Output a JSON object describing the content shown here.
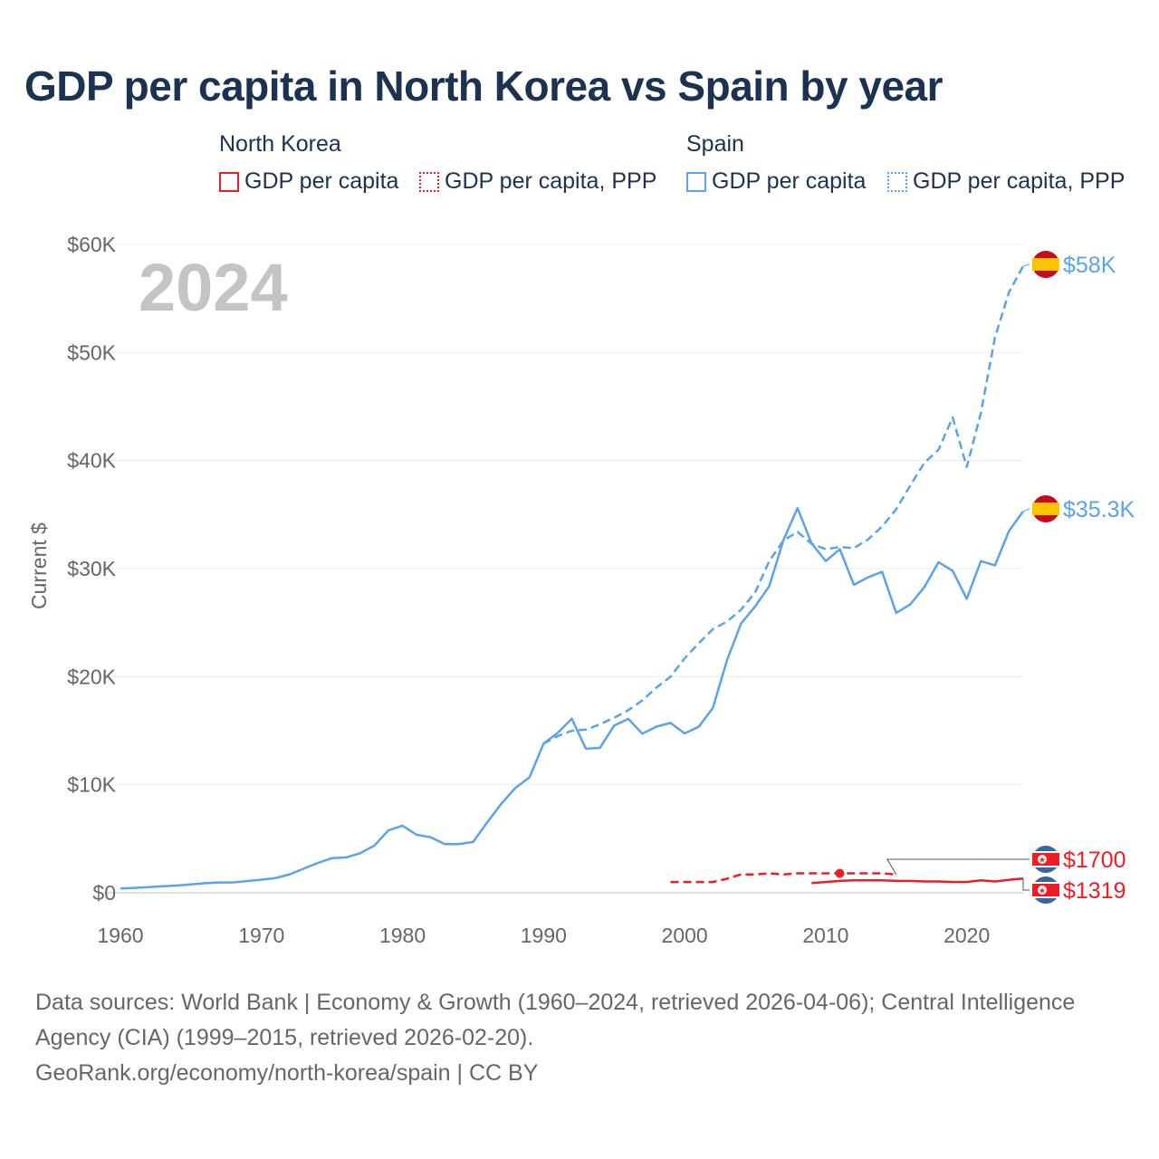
{
  "title": "GDP per capita in North Korea vs Spain by year",
  "legend": {
    "groups": [
      {
        "name": "North Korea",
        "items": [
          "GDP per capita",
          "GDP per capita, PPP"
        ]
      },
      {
        "name": "Spain",
        "items": [
          "GDP per capita",
          "GDP per capita, PPP"
        ]
      }
    ]
  },
  "year_label": "2024",
  "colors": {
    "north_korea": "#ee1c25",
    "spain": "#5ba3e8",
    "title": "#1b3350"
  },
  "chart_data": {
    "type": "line",
    "title": "GDP per capita in North Korea vs Spain by year",
    "xlabel": "",
    "ylabel": "Current $",
    "xlim": [
      1960,
      2024
    ],
    "ylim": [
      0,
      60000
    ],
    "x_ticks": [
      1960,
      1970,
      1980,
      1990,
      2000,
      2010,
      2020
    ],
    "x_tick_labels": [
      "1960",
      "1970",
      "1980",
      "1990",
      "2000",
      "2010",
      "2020"
    ],
    "y_ticks": [
      0,
      10000,
      20000,
      30000,
      40000,
      50000,
      60000
    ],
    "y_tick_labels": [
      "$0",
      "$10K",
      "$20K",
      "$30K",
      "$40K",
      "$50K",
      "$60K"
    ],
    "grid": true,
    "legend_position": "top",
    "series": [
      {
        "name": "Spain GDP per capita",
        "style": "solid",
        "color": "#5ba3e8",
        "end_label": "$35.3K",
        "start": 1960,
        "values": [
          396,
          449,
          520,
          609,
          675,
          774,
          889,
          950,
          958,
          1086,
          1212,
          1362,
          1708,
          2242,
          2759,
          3209,
          3275,
          3665,
          4364,
          5778,
          6208,
          5371,
          5137,
          4500,
          4509,
          4700,
          6513,
          8237,
          9701,
          10681,
          13805,
          14798,
          16113,
          13330,
          13421,
          15470,
          16098,
          14723,
          15378,
          15724,
          14750,
          15370,
          17105,
          21520,
          24925,
          26509,
          28377,
          32627,
          35601,
          32334,
          30700,
          31800,
          28500,
          29200,
          29700,
          25900,
          26700,
          28300,
          30600,
          29800,
          27200,
          30700,
          30300,
          33500,
          35300
        ]
      },
      {
        "name": "Spain GDP per capita, PPP",
        "style": "dashed",
        "color": "#5ba3e8",
        "end_label": "$58K",
        "start": 1990,
        "values": [
          13800,
          14500,
          15000,
          15100,
          15600,
          16200,
          16900,
          17800,
          19000,
          20000,
          21700,
          23100,
          24400,
          25100,
          26200,
          27800,
          30700,
          32600,
          33400,
          32300,
          31800,
          32000,
          31900,
          32700,
          33900,
          35500,
          37700,
          39800,
          41000,
          44000,
          39400,
          44400,
          51400,
          55600,
          58000
        ]
      },
      {
        "name": "North Korea GDP per capita, PPP",
        "style": "dashed",
        "color": "#ee1c25",
        "end_label": "$1700",
        "start": 1999,
        "marker_year": 2011,
        "values": [
          1000,
          1000,
          1000,
          1000,
          1300,
          1700,
          1700,
          1800,
          1700,
          1800,
          1800,
          1800,
          1800,
          1800,
          1800,
          1800,
          1700
        ]
      },
      {
        "name": "North Korea GDP per capita",
        "style": "solid",
        "color": "#ee1c25",
        "end_label": "$1319",
        "start": 2009,
        "values": [
          900,
          1000,
          1100,
          1150,
          1150,
          1150,
          1100,
          1100,
          1050,
          1050,
          1000,
          1000,
          1150,
          1050,
          1200,
          1319
        ]
      }
    ]
  },
  "footer": {
    "sources": "Data sources: World Bank | Economy & Growth (1960–2024, retrieved 2026-04-06); Central Intelligence Agency (CIA) (1999–2015, retrieved 2026-02-20).",
    "link": "GeoRank.org/economy/north-korea/spain | CC BY"
  }
}
